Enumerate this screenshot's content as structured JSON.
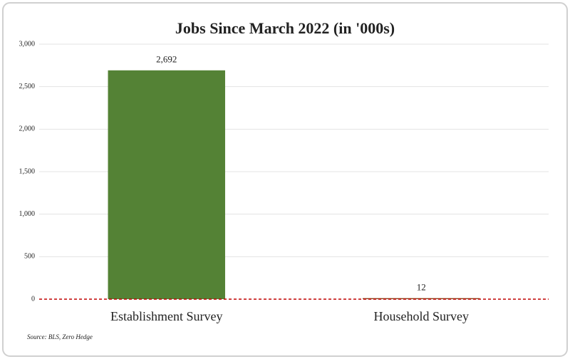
{
  "chart_data": {
    "type": "bar",
    "title": "Jobs Since March 2022 (in '000s)",
    "categories": [
      "Establishment Survey",
      "Household Survey"
    ],
    "values": [
      2692,
      12
    ],
    "value_labels": [
      "2,692",
      "12"
    ],
    "colors": [
      "#548235",
      "#8a4a1c"
    ],
    "ylim": [
      0,
      3000
    ],
    "yticks": [
      0,
      500,
      {
        "value": 1000,
        "label": "1,000"
      },
      {
        "value": 1500,
        "label": "1,500"
      },
      {
        "value": 2000,
        "label": "2,000"
      },
      {
        "value": 2500,
        "label": "2,500"
      },
      {
        "value": 3000,
        "label": "3,000"
      }
    ],
    "grid": true,
    "source": "Source: BLS, Zero Hedge"
  }
}
